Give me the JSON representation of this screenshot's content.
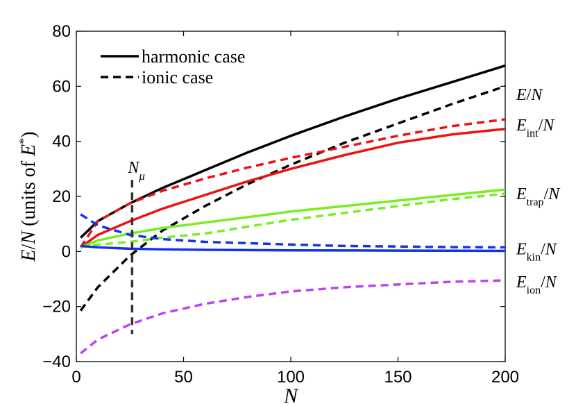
{
  "chart_data": {
    "type": "line",
    "xlabel": "N",
    "ylabel": "E/N (units of E*)",
    "xlim": [
      0,
      200
    ],
    "ylim": [
      -40,
      80
    ],
    "xticks": [
      0,
      50,
      100,
      150,
      200
    ],
    "yticks": [
      -40,
      -20,
      0,
      20,
      40,
      60,
      80
    ],
    "grid": false,
    "legend": {
      "placement": "top-left",
      "entries": [
        {
          "label": "harmonic case",
          "style": "solid",
          "color": "#000000"
        },
        {
          "label": "ionic case",
          "style": "dashed",
          "color": "#000000"
        }
      ]
    },
    "x": [
      2,
      10,
      25,
      40,
      60,
      80,
      100,
      125,
      150,
      175,
      200
    ],
    "series": [
      {
        "group": "E/N",
        "case": "harmonic",
        "color": "#000000",
        "dash": false,
        "values": [
          5,
          11,
          17.5,
          23,
          29.5,
          36,
          42,
          49,
          55.5,
          61.5,
          67.5
        ]
      },
      {
        "group": "E/N",
        "case": "ionic",
        "color": "#000000",
        "dash": true,
        "values": [
          -21.5,
          -13,
          -1.5,
          7.5,
          16.5,
          24.5,
          31.5,
          39.5,
          46.5,
          53.5,
          60
        ]
      },
      {
        "group": "E_int/N",
        "case": "harmonic",
        "color": "#ee1111",
        "dash": false,
        "values": [
          1.5,
          6,
          11,
          15.5,
          20.5,
          25.5,
          30,
          35,
          39.5,
          42.5,
          44.5
        ]
      },
      {
        "group": "E_int/N",
        "case": "ionic",
        "color": "#ee1111",
        "dash": true,
        "values": [
          1.5,
          11,
          17.5,
          22,
          26.5,
          30.5,
          34,
          38,
          42,
          45.5,
          48
        ]
      },
      {
        "group": "E_trap/N",
        "case": "harmonic",
        "color": "#77ee22",
        "dash": false,
        "values": [
          1.5,
          4,
          6.5,
          8.5,
          10.5,
          12.5,
          14.5,
          16.5,
          18.5,
          20.5,
          22.5
        ]
      },
      {
        "group": "E_trap/N",
        "case": "ionic",
        "color": "#77ee22",
        "dash": true,
        "values": [
          1.5,
          2.5,
          3.5,
          5,
          6.5,
          9,
          11.5,
          14,
          16.5,
          19,
          21
        ]
      },
      {
        "group": "E_kin/N",
        "case": "harmonic",
        "color": "#1133ee",
        "dash": false,
        "values": [
          2,
          1.5,
          1,
          0.8,
          0.6,
          0.5,
          0.4,
          0.35,
          0.3,
          0.25,
          0.2
        ]
      },
      {
        "group": "E_kin/N",
        "case": "ionic",
        "color": "#1133ee",
        "dash": true,
        "values": [
          13.5,
          9.5,
          6,
          4.5,
          3.5,
          3,
          2.5,
          2,
          1.8,
          1.6,
          1.5
        ]
      },
      {
        "group": "E_ion/N",
        "case": "ionic",
        "color": "#bb44ee",
        "dash": true,
        "values": [
          -37,
          -32,
          -26.5,
          -22.5,
          -19,
          -16.5,
          -14.5,
          -13,
          -12,
          -11,
          -10.5
        ]
      }
    ],
    "marker_line": {
      "x": 26,
      "y_top": 26,
      "y_bottom": -30,
      "label": "N_μ"
    },
    "curve_labels": [
      {
        "text": "E/N",
        "y": 57
      },
      {
        "text": "E_int/N",
        "y": 46
      },
      {
        "text": "E_trap/N",
        "y": 21
      },
      {
        "text": "E_kin/N",
        "y": 1
      },
      {
        "text": "E_ion/N",
        "y": -11
      }
    ]
  },
  "labels": {
    "legend_harmonic": "harmonic case",
    "legend_ionic": "ionic case"
  }
}
